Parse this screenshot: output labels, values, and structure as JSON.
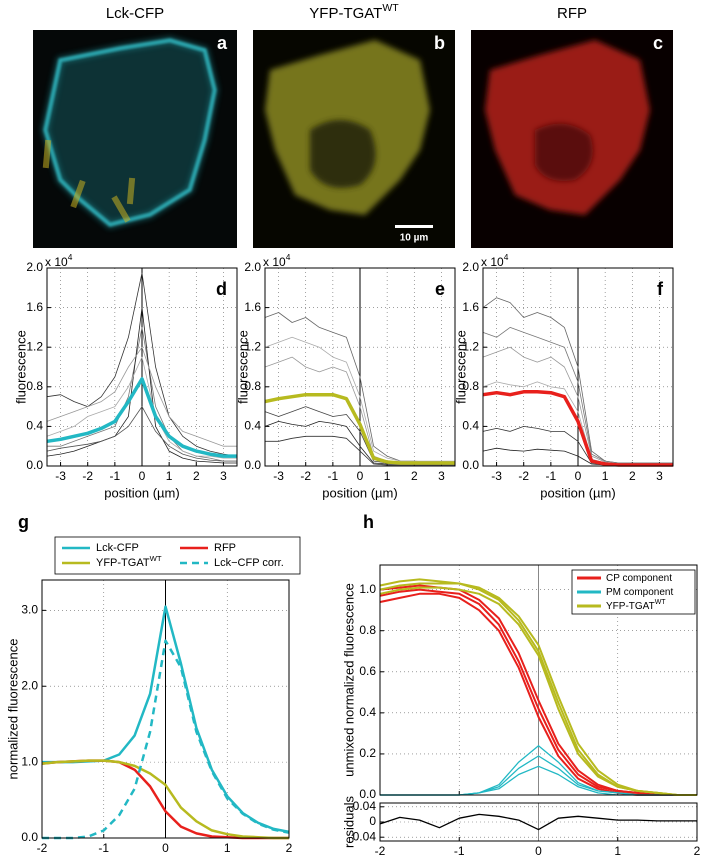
{
  "images": [
    {
      "title": "Lck-CFP",
      "letter": "a"
    },
    {
      "title": "YFP-TGAT",
      "title_sup": "WT",
      "letter": "b",
      "scale_bar": "10 µm"
    },
    {
      "title": "RFP",
      "letter": "c"
    }
  ],
  "chart_data": [
    {
      "type": "line",
      "letter": "d",
      "ylabel": "fluorescence",
      "xlabel": "position (µm)",
      "multiplier": "x 10",
      "multiplier_exp": "4",
      "xlim": [
        -3.5,
        3.5
      ],
      "ylim": [
        0,
        2
      ],
      "xticks": [
        -3,
        -2,
        -1,
        0,
        1,
        2,
        3
      ],
      "yticks": [
        {
          "value": 0,
          "label": "0.0"
        },
        0.4,
        0.8,
        1.2,
        1.6,
        {
          "value": 2,
          "label": "2.0"
        }
      ],
      "grid": true,
      "zero_line": true,
      "zero_line_color": "#000",
      "x": [
        -3.5,
        -3,
        -2.5,
        -2,
        -1.5,
        -1,
        -0.5,
        0,
        0.5,
        1,
        1.5,
        2,
        2.5,
        3,
        3.5
      ],
      "series": [
        {
          "color": "#333",
          "width": 0.8,
          "values": [
            0.7,
            0.72,
            0.65,
            0.6,
            0.7,
            0.9,
            1.3,
            1.95,
            1.0,
            0.5,
            0.3,
            0.2,
            0.15,
            0.12,
            0.1
          ]
        },
        {
          "color": "#777",
          "width": 0.8,
          "values": [
            0.2,
            0.2,
            0.25,
            0.3,
            0.35,
            0.4,
            0.7,
            1.4,
            0.6,
            0.3,
            0.15,
            0.1,
            0.08,
            0.05,
            0.05
          ]
        },
        {
          "color": "#222",
          "width": 0.8,
          "values": [
            0.1,
            0.12,
            0.15,
            0.2,
            0.25,
            0.3,
            0.5,
            1.6,
            0.4,
            0.15,
            0.08,
            0.05,
            0.04,
            0.03,
            0.03
          ]
        },
        {
          "color": "#999",
          "width": 0.8,
          "values": [
            0.45,
            0.5,
            0.55,
            0.6,
            0.65,
            0.75,
            1.0,
            1.2,
            0.8,
            0.5,
            0.35,
            0.3,
            0.25,
            0.2,
            0.2
          ]
        },
        {
          "color": "#555",
          "width": 0.8,
          "values": [
            0.15,
            0.18,
            0.2,
            0.22,
            0.25,
            0.3,
            0.4,
            0.6,
            0.35,
            0.2,
            0.12,
            0.08,
            0.06,
            0.05,
            0.05
          ]
        },
        {
          "color": "#aaa",
          "width": 0.8,
          "values": [
            0.3,
            0.35,
            0.4,
            0.5,
            0.55,
            0.6,
            0.8,
            1.1,
            0.5,
            0.25,
            0.15,
            0.1,
            0.1,
            0.08,
            0.08
          ]
        },
        {
          "color": "#22b8c4",
          "width": 3.5,
          "values": [
            0.25,
            0.27,
            0.3,
            0.33,
            0.38,
            0.45,
            0.65,
            0.88,
            0.5,
            0.3,
            0.2,
            0.15,
            0.12,
            0.1,
            0.1
          ]
        }
      ]
    },
    {
      "type": "line",
      "letter": "e",
      "ylabel": "fluorescence",
      "xlabel": "position (µm)",
      "multiplier": "x 10",
      "multiplier_exp": "4",
      "xlim": [
        -3.5,
        3.5
      ],
      "ylim": [
        0,
        2
      ],
      "xticks": [
        -3,
        -2,
        -1,
        0,
        1,
        2,
        3
      ],
      "yticks": [
        {
          "value": 0,
          "label": "0.0"
        },
        0.4,
        0.8,
        1.2,
        1.6,
        {
          "value": 2,
          "label": "2.0"
        }
      ],
      "grid": true,
      "zero_line": true,
      "zero_line_color": "#000",
      "x": [
        -3.5,
        -3,
        -2.5,
        -2,
        -1.5,
        -1,
        -0.5,
        0,
        0.5,
        1,
        1.5,
        2,
        2.5,
        3,
        3.5
      ],
      "series": [
        {
          "color": "#666",
          "width": 0.8,
          "values": [
            1.5,
            1.55,
            1.45,
            1.5,
            1.4,
            1.35,
            1.3,
            0.9,
            0.2,
            0.1,
            0.05,
            0.05,
            0.04,
            0.04,
            0.04
          ]
        },
        {
          "color": "#222",
          "width": 0.8,
          "values": [
            0.4,
            0.45,
            0.42,
            0.4,
            0.45,
            0.43,
            0.4,
            0.2,
            0.03,
            0.02,
            0.02,
            0.02,
            0.02,
            0.02,
            0.02
          ]
        },
        {
          "color": "#999",
          "width": 0.8,
          "values": [
            1.0,
            1.05,
            1.1,
            1.0,
            0.95,
            1.0,
            0.95,
            0.6,
            0.1,
            0.05,
            0.03,
            0.03,
            0.03,
            0.03,
            0.03
          ]
        },
        {
          "color": "#333",
          "width": 0.8,
          "values": [
            0.25,
            0.25,
            0.28,
            0.3,
            0.3,
            0.3,
            0.28,
            0.15,
            0.02,
            0.01,
            0.01,
            0.01,
            0.01,
            0.01,
            0.01
          ]
        },
        {
          "color": "#444",
          "width": 0.8,
          "values": [
            0.55,
            0.5,
            0.55,
            0.6,
            0.55,
            0.5,
            0.52,
            0.35,
            0.05,
            0.03,
            0.02,
            0.02,
            0.02,
            0.02,
            0.02
          ]
        },
        {
          "color": "#aaa",
          "width": 0.8,
          "values": [
            1.2,
            1.25,
            1.3,
            1.25,
            1.2,
            1.1,
            1.05,
            0.7,
            0.15,
            0.08,
            0.05,
            0.05,
            0.05,
            0.05,
            0.05
          ]
        },
        {
          "color": "#b7ba1f",
          "width": 3.5,
          "values": [
            0.65,
            0.68,
            0.7,
            0.72,
            0.72,
            0.72,
            0.68,
            0.42,
            0.08,
            0.04,
            0.03,
            0.03,
            0.03,
            0.03,
            0.03
          ]
        }
      ]
    },
    {
      "type": "line",
      "letter": "f",
      "ylabel": "fluorescence",
      "xlabel": "position (µm)",
      "multiplier": "x 10",
      "multiplier_exp": "4",
      "xlim": [
        -3.5,
        3.5
      ],
      "ylim": [
        0,
        2
      ],
      "xticks": [
        -3,
        -2,
        -1,
        0,
        1,
        2,
        3
      ],
      "yticks": [
        {
          "value": 0,
          "label": "0.0"
        },
        0.4,
        0.8,
        1.2,
        1.6,
        {
          "value": 2,
          "label": "2.0"
        }
      ],
      "grid": true,
      "zero_line": true,
      "zero_line_color": "#000",
      "x": [
        -3.5,
        -3,
        -2.5,
        -2,
        -1.5,
        -1,
        -0.5,
        0,
        0.5,
        1,
        1.5,
        2,
        2.5,
        3,
        3.5
      ],
      "series": [
        {
          "color": "#666",
          "width": 0.8,
          "values": [
            1.6,
            1.7,
            1.65,
            1.5,
            1.55,
            1.5,
            1.4,
            1.0,
            0.15,
            0.05,
            0.03,
            0.03,
            0.03,
            0.03,
            0.03
          ]
        },
        {
          "color": "#222",
          "width": 0.8,
          "values": [
            0.15,
            0.18,
            0.16,
            0.15,
            0.17,
            0.16,
            0.15,
            0.1,
            0.02,
            0.01,
            0.01,
            0.01,
            0.01,
            0.01,
            0.01
          ]
        },
        {
          "color": "#999",
          "width": 0.8,
          "values": [
            1.1,
            1.15,
            1.2,
            1.1,
            1.05,
            1.1,
            1.0,
            0.7,
            0.1,
            0.04,
            0.02,
            0.02,
            0.02,
            0.02,
            0.02
          ]
        },
        {
          "color": "#333",
          "width": 0.8,
          "values": [
            0.35,
            0.38,
            0.35,
            0.4,
            0.38,
            0.35,
            0.35,
            0.25,
            0.03,
            0.01,
            0.01,
            0.01,
            0.01,
            0.01,
            0.01
          ]
        },
        {
          "color": "#aaa",
          "width": 0.8,
          "values": [
            0.8,
            0.85,
            0.82,
            0.8,
            0.85,
            0.8,
            0.78,
            0.55,
            0.07,
            0.03,
            0.02,
            0.02,
            0.02,
            0.02,
            0.02
          ]
        },
        {
          "color": "#777",
          "width": 0.8,
          "values": [
            1.35,
            1.3,
            1.4,
            1.35,
            1.3,
            1.25,
            1.2,
            0.85,
            0.12,
            0.05,
            0.03,
            0.03,
            0.03,
            0.03,
            0.03
          ]
        },
        {
          "color": "#e8201c",
          "width": 3.5,
          "values": [
            0.72,
            0.74,
            0.72,
            0.75,
            0.75,
            0.74,
            0.7,
            0.45,
            0.05,
            0.02,
            0.01,
            0.01,
            0.01,
            0.01,
            0.01
          ]
        }
      ]
    },
    {
      "type": "line",
      "letter": "g",
      "ylabel": "normalized fluorescence",
      "xlabel": "position (µm)",
      "xlim": [
        -2,
        2
      ],
      "ylim": [
        0,
        3.4
      ],
      "xticks": [
        -2,
        -1,
        0,
        1,
        2
      ],
      "yticks": [
        {
          "value": 0,
          "label": "0.0"
        },
        {
          "value": 1,
          "label": "1.0"
        },
        {
          "value": 2,
          "label": "2.0"
        },
        {
          "value": 3,
          "label": "3.0"
        }
      ],
      "grid": true,
      "zero_line": true,
      "zero_line_color": "#000",
      "legend": "above",
      "x": [
        -2,
        -1.75,
        -1.5,
        -1.25,
        -1,
        -0.75,
        -0.5,
        -0.25,
        0,
        0.25,
        0.5,
        0.75,
        1,
        1.25,
        1.5,
        1.75,
        2
      ],
      "series": [
        {
          "name": "Lck-CFP",
          "color": "#22b8c4",
          "width": 2.5,
          "values": [
            1.0,
            1.0,
            1.0,
            1.01,
            1.02,
            1.1,
            1.35,
            1.9,
            3.05,
            2.3,
            1.45,
            0.9,
            0.55,
            0.33,
            0.2,
            0.12,
            0.08
          ]
        },
        {
          "name": "RFP",
          "color": "#e8201c",
          "width": 2.5,
          "values": [
            0.98,
            1.0,
            1.01,
            1.02,
            1.02,
            1.0,
            0.9,
            0.68,
            0.35,
            0.15,
            0.06,
            0.02,
            0.01,
            0.0,
            0.0,
            0.0,
            0.0
          ]
        },
        {
          "name": "YFP-TGAT",
          "name_sup": "WT",
          "color": "#b7ba1f",
          "width": 2.5,
          "values": [
            0.98,
            1.0,
            1.01,
            1.02,
            1.02,
            1.0,
            0.95,
            0.85,
            0.7,
            0.4,
            0.22,
            0.1,
            0.05,
            0.02,
            0.01,
            0.0,
            0.0
          ]
        },
        {
          "name": "Lck−CFP corr.",
          "color": "#22b8c4",
          "width": 2.5,
          "dash": true,
          "values": [
            0.0,
            0.0,
            0.0,
            0.02,
            0.1,
            0.3,
            0.65,
            1.4,
            2.6,
            2.25,
            1.4,
            0.88,
            0.52,
            0.32,
            0.19,
            0.11,
            0.07
          ]
        }
      ]
    },
    {
      "type": "line",
      "letter": "h",
      "ylabel": "unmixed normalized fluorescence",
      "xlim": [
        -2,
        2
      ],
      "ylim": [
        0,
        1.12
      ],
      "xticks": [
        -2,
        -1,
        0,
        1,
        2
      ],
      "show_xtick_labels": false,
      "yticks": [
        {
          "value": 0,
          "label": "0.0"
        },
        0.2,
        0.4,
        0.6,
        0.8,
        {
          "value": 1,
          "label": "1.0"
        }
      ],
      "grid": true,
      "zero_line": true,
      "zero_line_color": "#888",
      "legend": "upper right",
      "x": [
        -2,
        -1.75,
        -1.5,
        -1.25,
        -1,
        -0.75,
        -0.5,
        -0.25,
        0,
        0.25,
        0.5,
        0.75,
        1,
        1.25,
        1.5,
        1.75,
        2
      ],
      "series": [
        {
          "name": "CP component",
          "color": "#e8201c",
          "width": 2,
          "lines": [
            [
              0.97,
              0.99,
              1.0,
              0.99,
              0.98,
              0.93,
              0.83,
              0.65,
              0.42,
              0.22,
              0.1,
              0.04,
              0.02,
              0.01,
              0.0,
              0.0,
              0.0
            ],
            [
              0.94,
              0.96,
              0.98,
              0.98,
              0.96,
              0.9,
              0.8,
              0.62,
              0.38,
              0.19,
              0.08,
              0.03,
              0.01,
              0.0,
              0.0,
              0.0,
              0.0
            ],
            [
              1.0,
              1.01,
              1.02,
              1.01,
              1.0,
              0.95,
              0.86,
              0.69,
              0.46,
              0.25,
              0.12,
              0.05,
              0.02,
              0.01,
              0.0,
              0.0,
              0.0
            ]
          ]
        },
        {
          "name": "PM component",
          "color": "#22b8c4",
          "width": 1.3,
          "lines": [
            [
              0.0,
              0.0,
              0.0,
              0.0,
              0.0,
              0.01,
              0.05,
              0.16,
              0.24,
              0.16,
              0.06,
              0.02,
              0.01,
              0.0,
              0.0,
              0.0,
              0.0
            ],
            [
              0.0,
              0.0,
              0.0,
              0.0,
              0.0,
              0.01,
              0.04,
              0.13,
              0.19,
              0.13,
              0.05,
              0.02,
              0.01,
              0.0,
              0.0,
              0.0,
              0.0
            ],
            [
              0.0,
              0.0,
              0.0,
              0.0,
              0.0,
              0.01,
              0.03,
              0.1,
              0.14,
              0.1,
              0.04,
              0.01,
              0.0,
              0.0,
              0.0,
              0.0,
              0.0
            ]
          ]
        },
        {
          "name": "YFP-TGAT",
          "name_sup": "WT",
          "color": "#b7ba1f",
          "width": 2,
          "lines": [
            [
              1.0,
              1.02,
              1.03,
              1.03,
              1.03,
              1.0,
              0.95,
              0.85,
              0.7,
              0.45,
              0.22,
              0.1,
              0.04,
              0.02,
              0.01,
              0.0,
              0.0
            ],
            [
              0.98,
              1.0,
              1.01,
              1.01,
              1.0,
              0.98,
              0.93,
              0.83,
              0.68,
              0.42,
              0.2,
              0.09,
              0.04,
              0.02,
              0.01,
              0.0,
              0.0
            ],
            [
              1.02,
              1.04,
              1.05,
              1.04,
              1.03,
              1.01,
              0.96,
              0.87,
              0.73,
              0.48,
              0.25,
              0.12,
              0.05,
              0.02,
              0.01,
              0.0,
              0.0
            ]
          ]
        }
      ]
    },
    {
      "type": "line",
      "ylabel": "residuals",
      "xlabel": "position (µm)",
      "xlim": [
        -2,
        2
      ],
      "ylim": [
        -0.05,
        0.05
      ],
      "xticks": [
        -2,
        -1,
        0,
        1,
        2
      ],
      "yticks": [
        -0.04,
        0,
        0.04
      ],
      "grid": true,
      "zero_line": true,
      "zero_line_color": "#888",
      "x": [
        -2,
        -1.75,
        -1.5,
        -1.25,
        -1,
        -0.75,
        -0.5,
        -0.25,
        0,
        0.25,
        0.5,
        0.75,
        1,
        1.25,
        1.5,
        1.75,
        2
      ],
      "series": [
        {
          "color": "#000",
          "width": 1.3,
          "values": [
            -0.005,
            0.012,
            0.005,
            -0.015,
            0.01,
            0.02,
            0.015,
            0.005,
            -0.02,
            0.01,
            0.015,
            0.01,
            0.005,
            0.005,
            0.003,
            0.003,
            0.003
          ]
        }
      ]
    }
  ]
}
